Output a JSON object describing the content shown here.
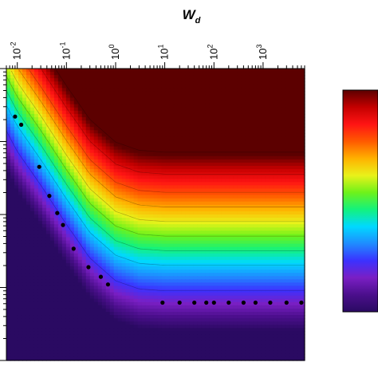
{
  "chart_data": {
    "type": "heatmap",
    "title": "",
    "xlabel": {
      "base": "W",
      "sub": "d"
    },
    "ylabel": "",
    "x_scale": "log",
    "x_range": [
      0.006,
      7000
    ],
    "x_ticks": [
      {
        "value": 0.01,
        "base": "10",
        "exp": "-2"
      },
      {
        "value": 0.1,
        "base": "10",
        "exp": "-1"
      },
      {
        "value": 1,
        "base": "10",
        "exp": "0"
      },
      {
        "value": 10,
        "base": "10",
        "exp": "1"
      },
      {
        "value": 100,
        "base": "10",
        "exp": "2"
      },
      {
        "value": 1000,
        "base": "10",
        "exp": "3"
      }
    ],
    "y_scale": "log",
    "y_range": [
      0.0001,
      1
    ],
    "y_tick_labels_visible": false,
    "y_major_ticks": [
      1,
      0.1,
      0.01,
      0.001,
      0.0001
    ],
    "colormap": [
      "#2a0a62",
      "#4b0f8c",
      "#7a1fc4",
      "#3b32ff",
      "#1f8cff",
      "#00d9ff",
      "#14f27c",
      "#6ef21a",
      "#e9f21a",
      "#ffb100",
      "#ff5a00",
      "#ff1414",
      "#c40000",
      "#5c0000"
    ],
    "colorbar_tick_labels_visible": false,
    "boundary_curve": {
      "x": [
        0.006,
        0.01,
        0.03,
        0.1,
        0.3,
        1,
        3,
        10,
        30,
        100,
        300,
        1000,
        7000
      ],
      "y": [
        0.25,
        0.13,
        0.045,
        0.013,
        0.0045,
        0.0022,
        0.0017,
        0.0016,
        0.0016,
        0.0016,
        0.0016,
        0.0016,
        0.0016
      ]
    },
    "scatter": {
      "x": [
        0.009,
        0.012,
        0.028,
        0.045,
        0.065,
        0.085,
        0.14,
        0.28,
        0.5,
        0.7,
        9,
        20,
        40,
        70,
        100,
        200,
        400,
        700,
        1400,
        3000,
        6000
      ],
      "y": [
        0.22,
        0.17,
        0.045,
        0.018,
        0.0105,
        0.0072,
        0.0034,
        0.0019,
        0.0014,
        0.0011,
        0.00062,
        0.00062,
        0.00062,
        0.00062,
        0.00062,
        0.00062,
        0.00062,
        0.00062,
        0.00062,
        0.00062,
        0.00062
      ]
    }
  }
}
